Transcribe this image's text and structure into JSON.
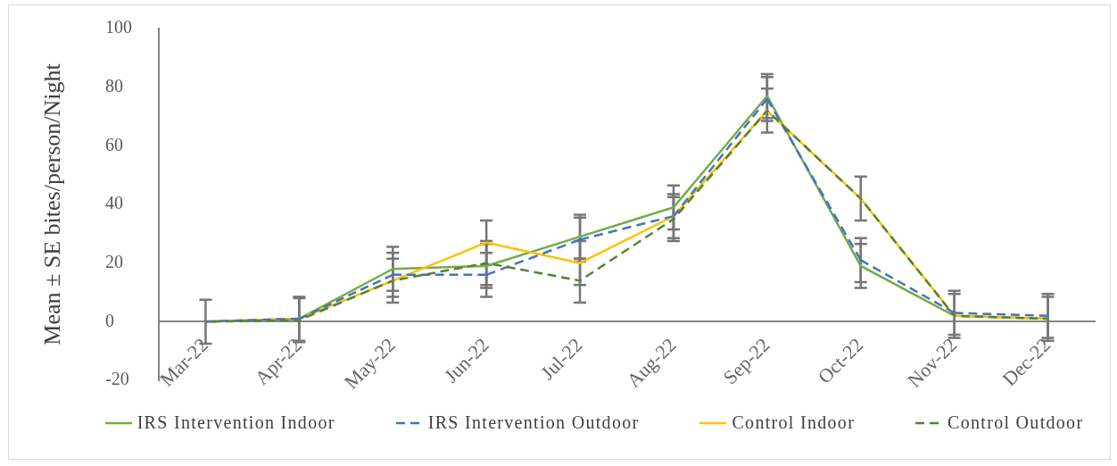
{
  "chart_data": {
    "type": "line",
    "ylabel": "Mean ± SE bites/person/Night",
    "categories": [
      "Mar-22",
      "Apr-22",
      "May-22",
      "Jun-22",
      "Jul-22",
      "Aug-22",
      "Sep-22",
      "Oct-22",
      "Nov-22",
      "Dec-22"
    ],
    "series": [
      {
        "name": "IRS Intervention Indoor",
        "color": "#70ad47",
        "line_style": "solid",
        "values": [
          0,
          1,
          18,
          19,
          29,
          39,
          77,
          19,
          2,
          1
        ],
        "errors": [
          7.5,
          7.5,
          7.5,
          7.5,
          7.5,
          7.5,
          7.5,
          7.5,
          7.5,
          7.5
        ]
      },
      {
        "name": "IRS Intervention Outdoor",
        "color": "#4472c4",
        "line_style": "dashed",
        "values": [
          0,
          1,
          16,
          16,
          28,
          36,
          76,
          21,
          3,
          2
        ],
        "errors": [
          7.5,
          7.5,
          7.5,
          7.5,
          7.5,
          7.5,
          7.5,
          7.5,
          7.5,
          7.5
        ]
      },
      {
        "name": "Control Indoor",
        "color": "#ffc000",
        "line_style": "solid",
        "values": [
          0,
          1,
          14,
          27,
          20,
          36,
          72,
          42,
          2,
          1
        ],
        "errors": [
          7.5,
          7.5,
          7.5,
          7.5,
          7.5,
          7.5,
          7.5,
          7.5,
          7.5,
          7.5
        ]
      },
      {
        "name": "Control Outdoor",
        "color": "#548235",
        "line_style": "dashed",
        "values": [
          0,
          0.5,
          14,
          20,
          14,
          35,
          72,
          42,
          2,
          1
        ],
        "errors": [
          7.5,
          7.5,
          7.5,
          7.5,
          7.5,
          7.5,
          7.5,
          7.5,
          7.5,
          7.5
        ]
      }
    ],
    "ylim": [
      -20,
      100
    ],
    "yticks": [
      -20,
      0,
      20,
      40,
      60,
      80,
      100
    ],
    "grid": false,
    "legend": "bottom",
    "marker": "none"
  }
}
